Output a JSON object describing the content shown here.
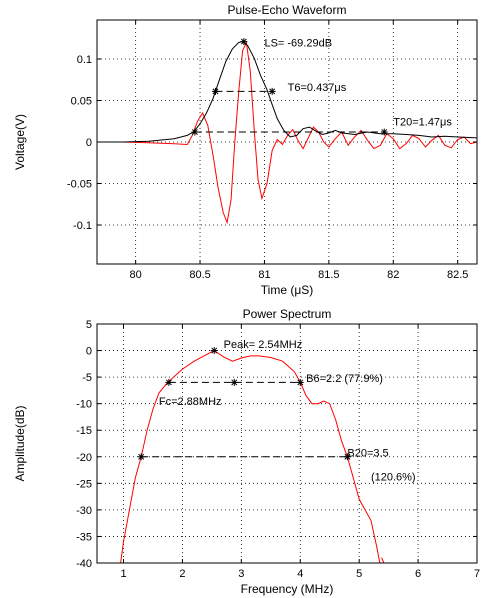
{
  "chart_data": [
    {
      "type": "line",
      "title": "Pulse-Echo Waveform",
      "xlabel": "Time (μS)",
      "ylabel": "Voltage(V)",
      "xlim": [
        79.7,
        82.65
      ],
      "ylim": [
        -0.147,
        0.147
      ],
      "xticks": [
        80,
        80.5,
        81,
        81.5,
        82,
        82.5
      ],
      "yticks": [
        0.1,
        0.05,
        0,
        -0.05,
        -0.1
      ],
      "ytick_labels": [
        "0.1",
        "0.05",
        "0",
        "-0.05",
        "-0.1"
      ],
      "grid": true,
      "series": [
        {
          "color": "#ff0000",
          "x": [
            79.7,
            79.9,
            80.1,
            80.3,
            80.4,
            80.44,
            80.48,
            80.52,
            80.56,
            80.6,
            80.64,
            80.68,
            80.71,
            80.74,
            80.77,
            80.8,
            80.83,
            80.86,
            80.89,
            80.92,
            80.95,
            80.98,
            81.02,
            81.06,
            81.1,
            81.14,
            81.18,
            81.22,
            81.26,
            81.3,
            81.34,
            81.38,
            81.42,
            81.46,
            81.5,
            81.55,
            81.6,
            81.65,
            81.7,
            81.75,
            81.8,
            81.85,
            81.9,
            81.95,
            82.0,
            82.05,
            82.1,
            82.15,
            82.2,
            82.25,
            82.3,
            82.35,
            82.4,
            82.45,
            82.5,
            82.55,
            82.6,
            82.65
          ],
          "y": [
            0,
            0,
            -0.001,
            -0.002,
            -0.003,
            0.008,
            0.025,
            0.035,
            0.02,
            -0.015,
            -0.055,
            -0.085,
            -0.097,
            -0.07,
            0.0,
            0.06,
            0.11,
            0.12,
            0.085,
            0.015,
            -0.045,
            -0.068,
            -0.05,
            -0.01,
            0.003,
            -0.003,
            0.008,
            0.015,
            0.002,
            -0.008,
            0.005,
            0.018,
            0.012,
            0.0,
            -0.006,
            0.004,
            0.012,
            -0.004,
            0.006,
            0.014,
            0.002,
            -0.008,
            -0.004,
            0.01,
            0.004,
            -0.008,
            -0.002,
            0.008,
            0.004,
            -0.006,
            0.002,
            0.008,
            -0.004,
            -0.007,
            0.003,
            0.006,
            -0.002,
            0.0
          ]
        },
        {
          "color": "#000000",
          "x": [
            79.7,
            79.9,
            80.1,
            80.3,
            80.4,
            80.45,
            80.5,
            80.55,
            80.6,
            80.65,
            80.7,
            80.75,
            80.8,
            80.83,
            80.87,
            80.92,
            80.97,
            81.02,
            81.06,
            81.1,
            81.15,
            81.2,
            81.25,
            81.3,
            81.35,
            81.4,
            81.45,
            81.5,
            81.55,
            81.6,
            81.7,
            81.8,
            81.9,
            82.0,
            82.1,
            82.2,
            82.3,
            82.4,
            82.5,
            82.65
          ],
          "y": [
            0,
            0,
            0.001,
            0.004,
            0.008,
            0.012,
            0.022,
            0.035,
            0.052,
            0.075,
            0.097,
            0.112,
            0.12,
            0.121,
            0.116,
            0.101,
            0.08,
            0.063,
            0.045,
            0.028,
            0.014,
            0.006,
            0.008,
            0.016,
            0.018,
            0.013,
            0.009,
            0.011,
            0.014,
            0.011,
            0.009,
            0.012,
            0.01,
            0.01,
            0.009,
            0.008,
            0.006,
            0.007,
            0.006,
            0.005
          ]
        }
      ],
      "markers": [
        {
          "x": 80.84,
          "y": 0.121
        },
        {
          "x": 80.62,
          "y": 0.061
        },
        {
          "x": 81.06,
          "y": 0.061
        },
        {
          "x": 80.46,
          "y": 0.012
        },
        {
          "x": 81.93,
          "y": 0.012
        }
      ],
      "dashed_lines": [
        {
          "x1": 80.62,
          "x2": 81.06,
          "y": 0.061
        },
        {
          "x1": 80.46,
          "x2": 81.93,
          "y": 0.012
        }
      ],
      "annotations": [
        {
          "text": "LS= -69.29dB",
          "x": 81.0,
          "y": 0.12
        },
        {
          "text": "T6=0.437μs",
          "x": 81.18,
          "y": 0.066
        },
        {
          "text": "T20=1.47μs",
          "x": 82.0,
          "y": 0.025
        }
      ]
    },
    {
      "type": "line",
      "title": "Power Spectrum",
      "xlabel": "Frequency (MHz)",
      "ylabel": "Amplitude(dB)",
      "xlim": [
        0.55,
        7
      ],
      "ylim": [
        -40,
        5
      ],
      "xticks": [
        1,
        2,
        3,
        4,
        5,
        6,
        7
      ],
      "yticks": [
        5,
        0,
        -5,
        -10,
        -15,
        -20,
        -25,
        -30,
        -35,
        -40
      ],
      "grid": true,
      "series": [
        {
          "color": "#ff0000",
          "x": [
            0.95,
            1.0,
            1.1,
            1.2,
            1.3,
            1.4,
            1.5,
            1.6,
            1.75,
            1.9,
            2.0,
            2.2,
            2.4,
            2.54,
            2.7,
            2.85,
            3.0,
            3.15,
            3.3,
            3.5,
            3.7,
            3.9,
            4.0,
            4.1,
            4.2,
            4.3,
            4.4,
            4.5,
            4.6,
            4.7,
            4.8,
            4.9,
            5.0,
            5.1,
            5.2,
            5.3,
            5.35
          ],
          "y": [
            -40,
            -36,
            -30,
            -24,
            -20,
            -15,
            -11,
            -8,
            -6,
            -4.5,
            -3.5,
            -2,
            -0.8,
            0,
            -1.2,
            -2,
            -1.4,
            -1,
            -1,
            -1.3,
            -2,
            -4,
            -6,
            -8.5,
            -10,
            -10,
            -9.5,
            -10,
            -13,
            -17,
            -20,
            -24,
            -28,
            -30,
            -32,
            -37,
            -40
          ]
        }
      ],
      "series_b": [
        {
          "x": [
            5.38,
            5.42
          ],
          "y": [
            -39,
            -40
          ]
        }
      ],
      "markers": [
        {
          "x": 2.54,
          "y": 0
        },
        {
          "x": 1.77,
          "y": -6
        },
        {
          "x": 2.88,
          "y": -6
        },
        {
          "x": 4.0,
          "y": -6
        },
        {
          "x": 1.3,
          "y": -20
        },
        {
          "x": 4.8,
          "y": -20
        }
      ],
      "dashed_lines": [
        {
          "x1": 1.77,
          "x2": 4.0,
          "y": -6
        },
        {
          "x1": 1.3,
          "x2": 4.8,
          "y": -20
        }
      ],
      "annotations": [
        {
          "text": "Peak= 2.54MHz",
          "x": 2.7,
          "y": 1.2
        },
        {
          "text": "B6=2.2 (77.9%)",
          "x": 4.1,
          "y": -5.2
        },
        {
          "text": "Fc=2.88MHz",
          "x": 1.6,
          "y": -9.5
        },
        {
          "text": "B20=3.5",
          "x": 4.8,
          "y": -19.2
        },
        {
          "text": "(120.6%)",
          "x": 5.2,
          "y": -23.7
        }
      ]
    }
  ]
}
